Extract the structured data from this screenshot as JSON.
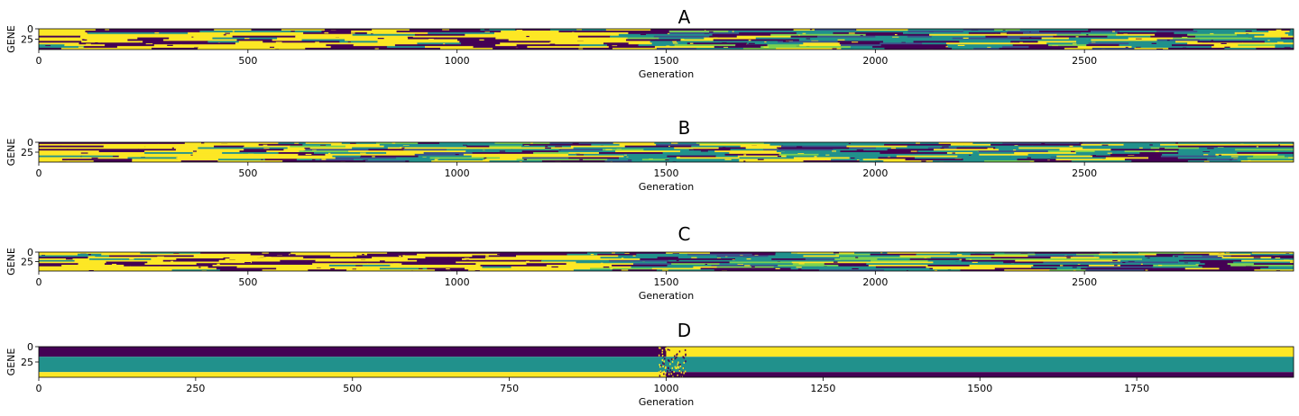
{
  "figure": {
    "colors": {
      "dark": "#440154",
      "mid": "#21918c",
      "light": "#fde725",
      "lightgreen": "#7ad151",
      "blue": "#3b528b"
    }
  },
  "chart_data": [
    {
      "type": "heatmap",
      "title": "A",
      "xlabel": "Generation",
      "ylabel": "GENE",
      "xlim": [
        0,
        3000
      ],
      "ylim": [
        0,
        50
      ],
      "xticks": [
        0,
        500,
        1000,
        1500,
        2000,
        2500
      ],
      "yticks": [
        0,
        25
      ],
      "pattern": "banded-noisy",
      "transition_x": 1400
    },
    {
      "type": "heatmap",
      "title": "B",
      "xlabel": "Generation",
      "ylabel": "GENE",
      "xlim": [
        0,
        3000
      ],
      "ylim": [
        0,
        50
      ],
      "xticks": [
        0,
        500,
        1000,
        1500,
        2000,
        2500
      ],
      "yticks": [
        0,
        25
      ],
      "pattern": "banded-noisy",
      "transition_x": 600
    },
    {
      "type": "heatmap",
      "title": "C",
      "xlabel": "Generation",
      "ylabel": "GENE",
      "xlim": [
        0,
        3000
      ],
      "ylim": [
        0,
        50
      ],
      "xticks": [
        0,
        500,
        1000,
        1500,
        2000,
        2500
      ],
      "yticks": [
        0,
        25
      ],
      "pattern": "banded-noisy",
      "transition_x": 1200
    },
    {
      "type": "heatmap",
      "title": "D",
      "xlabel": "Generation",
      "ylabel": "GENE",
      "xlim": [
        0,
        2000
      ],
      "ylim": [
        0,
        50
      ],
      "xticks": [
        0,
        250,
        500,
        750,
        1000,
        1250,
        1500,
        1750
      ],
      "yticks": [
        0,
        25
      ],
      "pattern": "solid-bands",
      "transition_x": 1000
    }
  ]
}
